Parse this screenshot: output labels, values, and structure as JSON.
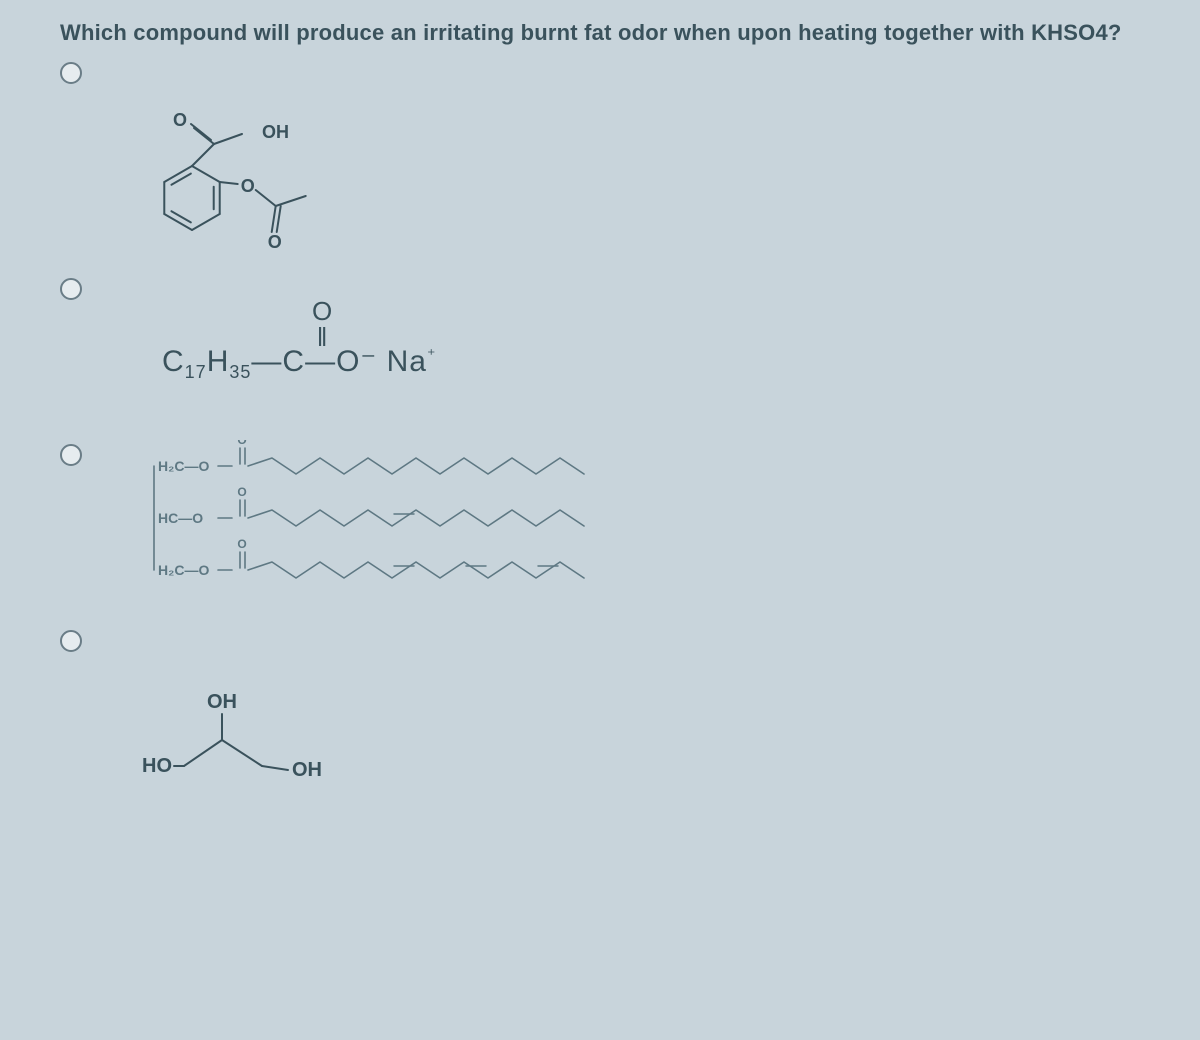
{
  "question": "Which compound will produce an irritating burnt fat odor when upon heating together with KHSO4?",
  "optionA": {
    "labels": {
      "O1": "O",
      "OH": "OH",
      "O2": "O",
      "O3": "O"
    },
    "colors": {
      "stroke": "#3a525c",
      "text": "#3a525c"
    },
    "stroke_width": 2
  },
  "optionB": {
    "formula_prefix": "C",
    "sub1": "17",
    "formula_mid": "H",
    "sub2": "35",
    "dash": "—",
    "C": "C",
    "dash2": "—",
    "Ominus": "O⁻",
    "space": " ",
    "Na": "Na",
    "plus": "⁺",
    "dblO_top": "O",
    "dblO_bars": "‖",
    "colors": {
      "text": "#3a525c"
    }
  },
  "optionC": {
    "backbone_labels": [
      "H₂C—O",
      "HC—O",
      "H₂C—O"
    ],
    "carbonyl_label": "O",
    "colors": {
      "stroke": "#5e7883",
      "text": "#5e7883"
    },
    "stroke_width": 1.6,
    "chain_points": 14,
    "chain_amplitude": 8,
    "chain_step": 24,
    "row_gap": 52
  },
  "optionD": {
    "labels": {
      "HO": "HO",
      "OH_top": "OH",
      "OH_right": "OH"
    },
    "colors": {
      "stroke": "#3a525c",
      "text": "#3a525c"
    },
    "stroke_width": 2
  },
  "layout": {
    "background": "#c8d4db"
  }
}
